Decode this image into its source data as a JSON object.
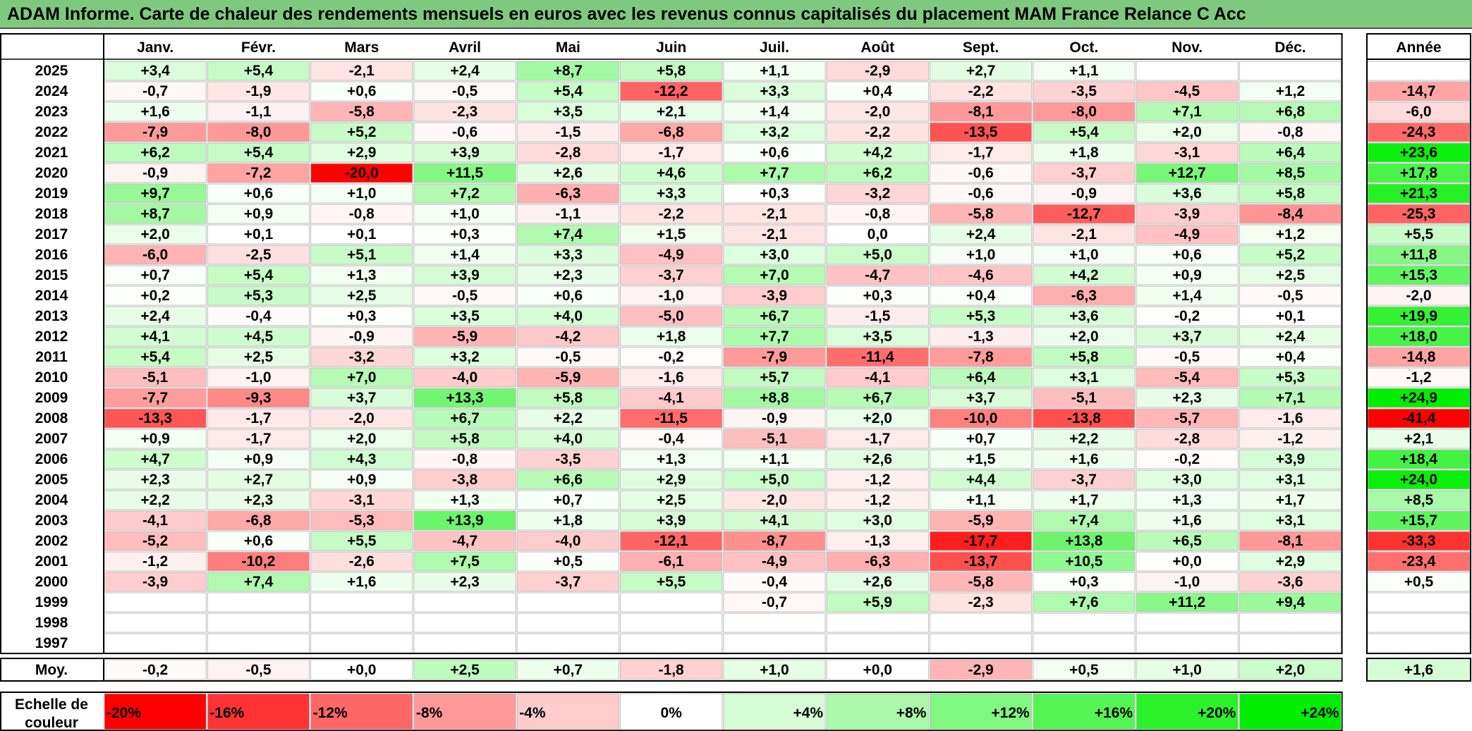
{
  "title": "ADAM Informe. Carte de chaleur des rendements mensuels en euros avec les revenus connus capitalisés du placement MAM France Relance C Acc",
  "chart_data": {
    "type": "heatmap",
    "months": [
      "Janv.",
      "Févr.",
      "Mars",
      "Avril",
      "Mai",
      "Juin",
      "Juil.",
      "Août",
      "Sept.",
      "Oct.",
      "Nov.",
      "Déc."
    ],
    "year_header": "Année",
    "rows": [
      {
        "year": "2025",
        "m": [
          "+3,4",
          "+5,4",
          "-2,1",
          "+2,4",
          "+8,7",
          "+5,8",
          "+1,1",
          "-2,9",
          "+2,7",
          "+1,1",
          "",
          ""
        ],
        "y": ""
      },
      {
        "year": "2024",
        "m": [
          "-0,7",
          "-1,9",
          "+0,6",
          "-0,5",
          "+5,4",
          "-12,2",
          "+3,3",
          "+0,4",
          "-2,2",
          "-3,5",
          "-4,5",
          "+1,2"
        ],
        "y": "-14,7"
      },
      {
        "year": "2023",
        "m": [
          "+1,6",
          "-1,1",
          "-5,8",
          "-2,3",
          "+3,5",
          "+2,1",
          "+1,4",
          "-2,0",
          "-8,1",
          "-8,0",
          "+7,1",
          "+6,8"
        ],
        "y": "-6,0"
      },
      {
        "year": "2022",
        "m": [
          "-7,9",
          "-8,0",
          "+5,2",
          "-0,6",
          "-1,5",
          "-6,8",
          "+3,2",
          "-2,2",
          "-13,5",
          "+5,4",
          "+2,0",
          "-0,8"
        ],
        "y": "-24,3"
      },
      {
        "year": "2021",
        "m": [
          "+6,2",
          "+5,4",
          "+2,9",
          "+3,9",
          "-2,8",
          "-1,7",
          "+0,6",
          "+4,2",
          "-1,7",
          "+1,8",
          "-3,1",
          "+6,4"
        ],
        "y": "+23,6"
      },
      {
        "year": "2020",
        "m": [
          "-0,9",
          "-7,2",
          "-20,0",
          "+11,5",
          "+2,6",
          "+4,6",
          "+7,7",
          "+6,2",
          "-0,6",
          "-3,7",
          "+12,7",
          "+8,5"
        ],
        "y": "+17,8"
      },
      {
        "year": "2019",
        "m": [
          "+9,7",
          "+0,6",
          "+1,0",
          "+7,2",
          "-6,3",
          "+3,3",
          "+0,3",
          "-3,2",
          "-0,6",
          "-0,9",
          "+3,6",
          "+5,8"
        ],
        "y": "+21,3"
      },
      {
        "year": "2018",
        "m": [
          "+8,7",
          "+0,9",
          "-0,8",
          "+1,0",
          "-1,1",
          "-2,2",
          "-2,1",
          "-0,8",
          "-5,8",
          "-12,7",
          "-3,9",
          "-8,4"
        ],
        "y": "-25,3"
      },
      {
        "year": "2017",
        "m": [
          "+2,0",
          "+0,1",
          "+0,1",
          "+0,3",
          "+7,4",
          "+1,5",
          "-2,1",
          "0,0",
          "+2,4",
          "-2,1",
          "-4,9",
          "+1,2"
        ],
        "y": "+5,5"
      },
      {
        "year": "2016",
        "m": [
          "-6,0",
          "-2,5",
          "+5,1",
          "+1,4",
          "+3,3",
          "-4,9",
          "+3,0",
          "+5,0",
          "+1,0",
          "+1,0",
          "+0,6",
          "+5,2"
        ],
        "y": "+11,8"
      },
      {
        "year": "2015",
        "m": [
          "+0,7",
          "+5,4",
          "+1,3",
          "+3,9",
          "+2,3",
          "-3,7",
          "+7,0",
          "-4,7",
          "-4,6",
          "+4,2",
          "+0,9",
          "+2,5"
        ],
        "y": "+15,3"
      },
      {
        "year": "2014",
        "m": [
          "+0,2",
          "+5,3",
          "+2,5",
          "-0,5",
          "+0,6",
          "-1,0",
          "-3,9",
          "+0,3",
          "+0,4",
          "-6,3",
          "+1,4",
          "-0,5"
        ],
        "y": "-2,0"
      },
      {
        "year": "2013",
        "m": [
          "+2,4",
          "-0,4",
          "+0,3",
          "+3,5",
          "+4,0",
          "-5,0",
          "+6,7",
          "-1,5",
          "+5,3",
          "+3,6",
          "-0,2",
          "+0,1"
        ],
        "y": "+19,9"
      },
      {
        "year": "2012",
        "m": [
          "+4,1",
          "+4,5",
          "-0,9",
          "-5,9",
          "-4,2",
          "+1,8",
          "+7,7",
          "+3,5",
          "-1,3",
          "+2,0",
          "+3,7",
          "+2,4"
        ],
        "y": "+18,0"
      },
      {
        "year": "2011",
        "m": [
          "+5,4",
          "+2,5",
          "-3,2",
          "+3,2",
          "-0,5",
          "-0,2",
          "-7,9",
          "-11,4",
          "-7,8",
          "+5,8",
          "-0,5",
          "+0,4"
        ],
        "y": "-14,8"
      },
      {
        "year": "2010",
        "m": [
          "-5,1",
          "-1,0",
          "+7,0",
          "-4,0",
          "-5,9",
          "-1,6",
          "+5,7",
          "-4,1",
          "+6,4",
          "+3,1",
          "-5,4",
          "+5,3"
        ],
        "y": "-1,2"
      },
      {
        "year": "2009",
        "m": [
          "-7,7",
          "-9,3",
          "+3,7",
          "+13,3",
          "+5,8",
          "-4,1",
          "+8,8",
          "+6,7",
          "+3,7",
          "-5,1",
          "+2,3",
          "+7,1"
        ],
        "y": "+24,9"
      },
      {
        "year": "2008",
        "m": [
          "-13,3",
          "-1,7",
          "-2,0",
          "+6,7",
          "+2,2",
          "-11,5",
          "-0,9",
          "+2,0",
          "-10,0",
          "-13,8",
          "-5,7",
          "-1,6"
        ],
        "y": "-41,4"
      },
      {
        "year": "2007",
        "m": [
          "+0,9",
          "-1,7",
          "+2,0",
          "+5,8",
          "+4,0",
          "-0,4",
          "-5,1",
          "-1,7",
          "+0,7",
          "+2,2",
          "-2,8",
          "-1,2"
        ],
        "y": "+2,1"
      },
      {
        "year": "2006",
        "m": [
          "+4,7",
          "+0,9",
          "+4,3",
          "-0,8",
          "-3,5",
          "+1,3",
          "+1,1",
          "+2,6",
          "+1,5",
          "+1,6",
          "-0,2",
          "+3,9"
        ],
        "y": "+18,4"
      },
      {
        "year": "2005",
        "m": [
          "+2,3",
          "+2,7",
          "+0,9",
          "-3,8",
          "+6,6",
          "+2,9",
          "+5,0",
          "-1,2",
          "+4,4",
          "-3,7",
          "+3,0",
          "+3,1"
        ],
        "y": "+24,0"
      },
      {
        "year": "2004",
        "m": [
          "+2,2",
          "+2,3",
          "-3,1",
          "+1,3",
          "+0,7",
          "+2,5",
          "-2,0",
          "-1,2",
          "+1,1",
          "+1,7",
          "+1,3",
          "+1,7"
        ],
        "y": "+8,5"
      },
      {
        "year": "2003",
        "m": [
          "-4,1",
          "-6,8",
          "-5,3",
          "+13,9",
          "+1,8",
          "+3,9",
          "+4,1",
          "+3,0",
          "-5,9",
          "+7,4",
          "+1,6",
          "+3,1"
        ],
        "y": "+15,7"
      },
      {
        "year": "2002",
        "m": [
          "-5,2",
          "+0,6",
          "+5,5",
          "-4,7",
          "-4,0",
          "-12,1",
          "-8,7",
          "-1,3",
          "-17,7",
          "+13,8",
          "+6,5",
          "-8,1"
        ],
        "y": "-33,3"
      },
      {
        "year": "2001",
        "m": [
          "-1,2",
          "-10,2",
          "-2,6",
          "+7,5",
          "+0,5",
          "-6,1",
          "-4,9",
          "-6,3",
          "-13,7",
          "+10,5",
          "+0,0",
          "+2,9"
        ],
        "y": "-23,4"
      },
      {
        "year": "2000",
        "m": [
          "-3,9",
          "+7,4",
          "+1,6",
          "+2,3",
          "-3,7",
          "+5,5",
          "-0,4",
          "+2,6",
          "-5,8",
          "+0,3",
          "-1,0",
          "-3,6"
        ],
        "y": "+0,5"
      },
      {
        "year": "1999",
        "m": [
          "",
          "",
          "",
          "",
          "",
          "",
          "-0,7",
          "+5,9",
          "-2,3",
          "+7,6",
          "+11,2",
          "+9,4"
        ],
        "y": ""
      },
      {
        "year": "1998",
        "m": [
          "",
          "",
          "",
          "",
          "",
          "",
          "",
          "",
          "",
          "",
          "",
          ""
        ],
        "y": ""
      },
      {
        "year": "1997",
        "m": [
          "",
          "",
          "",
          "",
          "",
          "",
          "",
          "",
          "",
          "",
          "",
          ""
        ],
        "y": ""
      }
    ],
    "average": {
      "label": "Moy.",
      "m": [
        "-0,2",
        "-0,5",
        "+0,0",
        "+2,5",
        "+0,7",
        "-1,8",
        "+1,0",
        "+0,0",
        "-2,9",
        "+0,5",
        "+1,0",
        "+2,0"
      ],
      "y": "+1,6"
    },
    "scale": {
      "label_line1": "Echelle de",
      "label_line2": "couleur",
      "steps": [
        "-20%",
        "-16%",
        "-12%",
        "-8%",
        "-4%",
        "0%",
        "+4%",
        "+8%",
        "+12%",
        "+16%",
        "+20%",
        "+24%"
      ],
      "step_values": [
        -20,
        -16,
        -12,
        -8,
        -4,
        0,
        4,
        8,
        12,
        16,
        20,
        24
      ]
    },
    "monthly_color_range": [
      -20,
      24
    ],
    "yearly_color_range": [
      -41.4,
      24.9
    ],
    "colors": {
      "negative": "#ff0000",
      "neutral": "#ffffff",
      "positive": "#00ee00",
      "title_bg": "#7fc97f"
    }
  }
}
